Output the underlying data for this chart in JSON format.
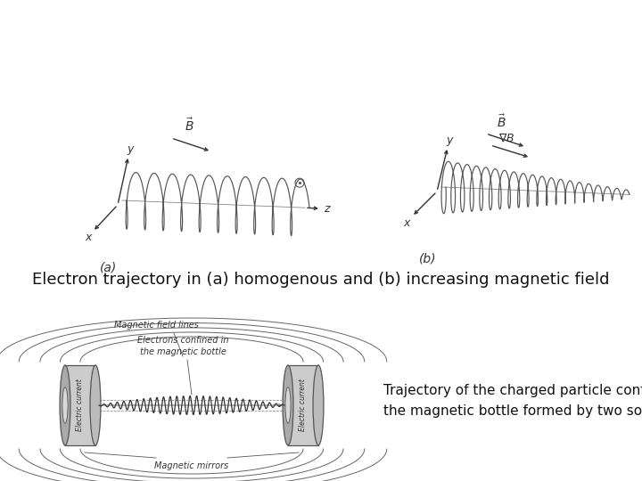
{
  "bg_color": "#ffffff",
  "caption1": "Electron trajectory in (a) homogenous and (b) increasing magnetic field",
  "caption2_line1": "Trajectory of the charged particle confined in",
  "caption2_line2": "the magnetic bottle formed by two solenoids",
  "caption1_fontsize": 13,
  "caption2_fontsize": 11,
  "fig_width": 7.2,
  "fig_height": 5.4,
  "fig_dpi": 100
}
